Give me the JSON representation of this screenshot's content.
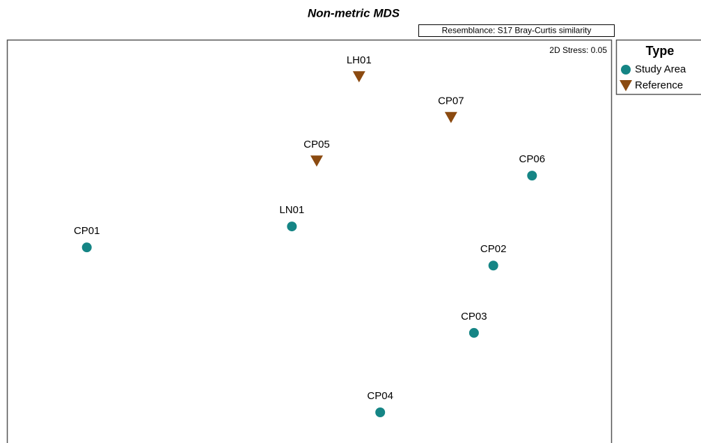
{
  "chart_data": {
    "type": "scatter",
    "title": "Non-metric MDS",
    "annotations": [
      "Resemblance: S17 Bray-Curtis similarity",
      "2D Stress: 0.05"
    ],
    "legend_title": "Type",
    "legend": "outside-right",
    "xlim": [
      0,
      100
    ],
    "ylim": [
      0,
      100
    ],
    "series": [
      {
        "name": "Study Area",
        "color": "#158585",
        "marker": "circle",
        "labels": [
          "CP06",
          "LN01",
          "CP01",
          "CP02",
          "CP03",
          "CP04"
        ],
        "x": [
          86.8,
          47.1,
          13.2,
          80.4,
          77.2,
          61.7
        ],
        "values": [
          66.3,
          53.7,
          48.5,
          44.0,
          27.3,
          7.6
        ]
      },
      {
        "name": "Reference",
        "color": "#8b4a10",
        "marker": "triangle-down",
        "labels": [
          "LH01",
          "CP07",
          "CP05"
        ],
        "x": [
          58.2,
          73.4,
          51.2
        ],
        "values": [
          90.8,
          80.7,
          69.9
        ]
      }
    ]
  }
}
